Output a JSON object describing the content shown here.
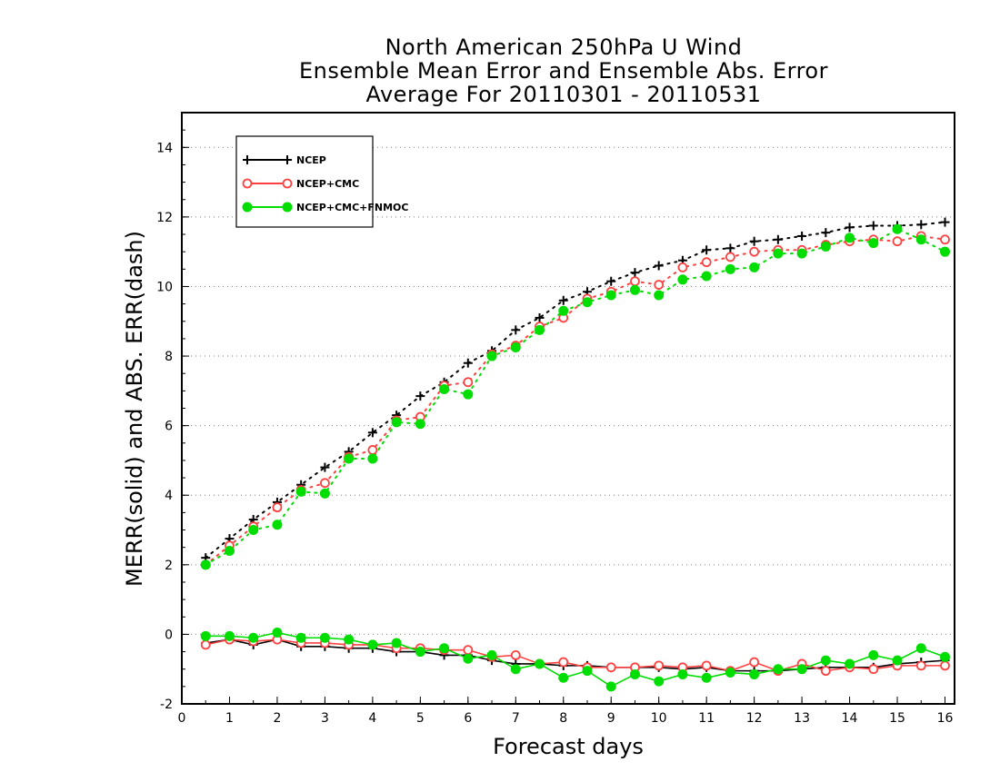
{
  "chart_data": {
    "type": "line",
    "title_lines": [
      "North American 250hPa U Wind",
      "Ensemble Mean Error and Ensemble Abs. Error",
      "Average For 20110301 - 20110531"
    ],
    "xlabel": "Forecast days",
    "ylabel": "MERR(solid) and ABS. ERR(dash)",
    "xlim": [
      0,
      16.2
    ],
    "ylim": [
      -2,
      15
    ],
    "xticks": [
      "0",
      "1",
      "2",
      "3",
      "4",
      "5",
      "6",
      "7",
      "8",
      "9",
      "10",
      "11",
      "12",
      "13",
      "14",
      "15",
      "16"
    ],
    "yticks": [
      "-2",
      "0",
      "2",
      "4",
      "6",
      "8",
      "10",
      "12",
      "14"
    ],
    "grid": "horizontal dotted",
    "legend_position": "top-left",
    "x": [
      0.5,
      1,
      1.5,
      2,
      2.5,
      3,
      3.5,
      4,
      4.5,
      5,
      5.5,
      6,
      6.5,
      7,
      7.5,
      8,
      8.5,
      9,
      9.5,
      10,
      10.5,
      11,
      11.5,
      12,
      12.5,
      13,
      13.5,
      14,
      14.5,
      15,
      15.5,
      16
    ],
    "series": [
      {
        "name": "NCEP",
        "color": "#000000",
        "marker": "plus",
        "abs_err": [
          2.2,
          2.75,
          3.3,
          3.8,
          4.3,
          4.8,
          5.25,
          5.8,
          6.3,
          6.85,
          7.25,
          7.8,
          8.15,
          8.75,
          9.1,
          9.6,
          9.85,
          10.15,
          10.4,
          10.6,
          10.75,
          11.05,
          11.1,
          11.3,
          11.35,
          11.45,
          11.55,
          11.7,
          11.75,
          11.75,
          11.78,
          11.85
        ],
        "mean_err": [
          -0.25,
          -0.15,
          -0.3,
          -0.15,
          -0.35,
          -0.35,
          -0.4,
          -0.4,
          -0.5,
          -0.5,
          -0.6,
          -0.6,
          -0.75,
          -0.85,
          -0.85,
          -0.9,
          -0.9,
          -0.95,
          -0.95,
          -0.95,
          -1.0,
          -0.95,
          -1.05,
          -1.05,
          -1.05,
          -1.0,
          -0.95,
          -0.95,
          -0.95,
          -0.85,
          -0.8,
          -0.75
        ]
      },
      {
        "name": "NCEP+CMC",
        "color": "#ff4040",
        "marker": "circle-open",
        "abs_err": [
          2.0,
          2.55,
          3.1,
          3.65,
          4.15,
          4.35,
          5.1,
          5.3,
          6.15,
          6.25,
          7.15,
          7.25,
          8.05,
          8.3,
          8.85,
          9.1,
          9.65,
          9.85,
          10.15,
          10.05,
          10.55,
          10.7,
          10.85,
          11.0,
          11.05,
          11.05,
          11.2,
          11.3,
          11.35,
          11.3,
          11.45,
          11.35
        ],
        "mean_err": [
          -0.3,
          -0.15,
          -0.2,
          -0.15,
          -0.25,
          -0.25,
          -0.3,
          -0.3,
          -0.4,
          -0.4,
          -0.45,
          -0.45,
          -0.65,
          -0.6,
          -0.85,
          -0.8,
          -0.95,
          -0.95,
          -0.95,
          -0.9,
          -0.95,
          -0.9,
          -1.05,
          -0.8,
          -1.05,
          -0.85,
          -1.05,
          -0.95,
          -1.0,
          -0.9,
          -0.9,
          -0.9
        ]
      },
      {
        "name": "NCEP+CMC+FNMOC",
        "color": "#00dd00",
        "marker": "circle-filled",
        "abs_err": [
          2.0,
          2.4,
          3.0,
          3.15,
          4.1,
          4.05,
          5.05,
          5.05,
          6.1,
          6.05,
          7.05,
          6.9,
          8.0,
          8.25,
          8.75,
          9.3,
          9.55,
          9.75,
          9.9,
          9.75,
          10.2,
          10.3,
          10.5,
          10.55,
          10.95,
          10.95,
          11.15,
          11.4,
          11.25,
          11.65,
          11.35,
          11.0
        ],
        "mean_err": [
          -0.05,
          -0.05,
          -0.1,
          0.05,
          -0.1,
          -0.1,
          -0.15,
          -0.3,
          -0.25,
          -0.5,
          -0.4,
          -0.7,
          -0.6,
          -1.0,
          -0.85,
          -1.25,
          -1.05,
          -1.5,
          -1.15,
          -1.35,
          -1.15,
          -1.25,
          -1.1,
          -1.15,
          -1.0,
          -1.0,
          -0.75,
          -0.85,
          -0.6,
          -0.75,
          -0.4,
          -0.65
        ]
      }
    ]
  }
}
